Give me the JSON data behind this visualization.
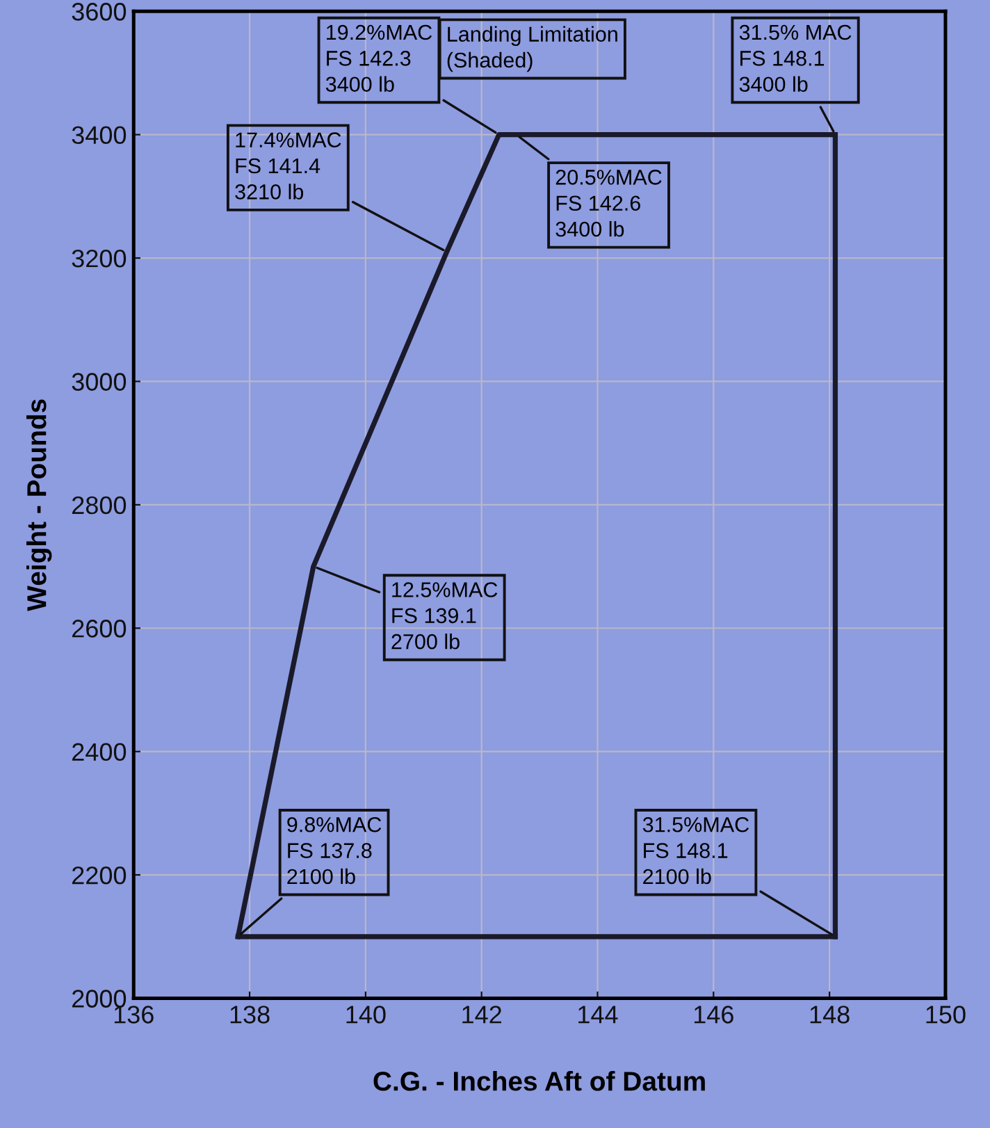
{
  "chart_data": {
    "type": "line",
    "xlabel": "C.G. - Inches Aft of Datum",
    "ylabel": "Weight - Pounds",
    "series": [
      {
        "color": "#1a1a2a",
        "x": [
          137.8,
          139.1,
          141.4,
          142.3,
          142.6,
          148.1
        ],
        "values": [
          2100,
          2700,
          3210,
          3400,
          3400,
          3400
        ]
      },
      {
        "color": "#1a1a2a",
        "x": [
          148.1,
          148.1
        ],
        "values": [
          3400,
          2100
        ]
      },
      {
        "color": "#1a1a2a",
        "x": [
          137.8,
          148.1
        ],
        "values": [
          2100,
          2100
        ]
      }
    ],
    "xlim": [
      136,
      150
    ],
    "xticks": [
      136,
      138,
      140,
      142,
      144,
      146,
      148,
      150
    ],
    "ylim": [
      2000,
      3600
    ],
    "yticks": [
      2000,
      2200,
      2400,
      2600,
      2800,
      3000,
      3200,
      3400,
      3600
    ],
    "grid": true,
    "marker": "none",
    "line_style": "solid",
    "annotations": [
      {
        "text": "9.8%MAC\nFS 137.8\n2100 lb",
        "x": 137.8,
        "y": 2100
      },
      {
        "text": "31.5%MAC\nFS 148.1\n2100 lb",
        "x": 148.1,
        "y": 2100
      },
      {
        "text": "12.5%MAC\nFS 139.1\n2700 lb",
        "x": 139.1,
        "y": 2700
      },
      {
        "text": "17.4%MAC\nFS 141.4\n3210 lb",
        "x": 141.4,
        "y": 3210
      },
      {
        "text": "19.2%MAC\nFS 142.3\n3400 lb",
        "x": 142.3,
        "y": 3400
      },
      {
        "text": "20.5%MAC\nFS 142.6\n3400 lb",
        "x": 142.6,
        "y": 3400
      },
      {
        "text": "31.5% MAC\nFS 148.1\n3400 lb",
        "x": 148.1,
        "y": 3400
      },
      "Landing Limitation\n(Shaded)"
    ]
  }
}
